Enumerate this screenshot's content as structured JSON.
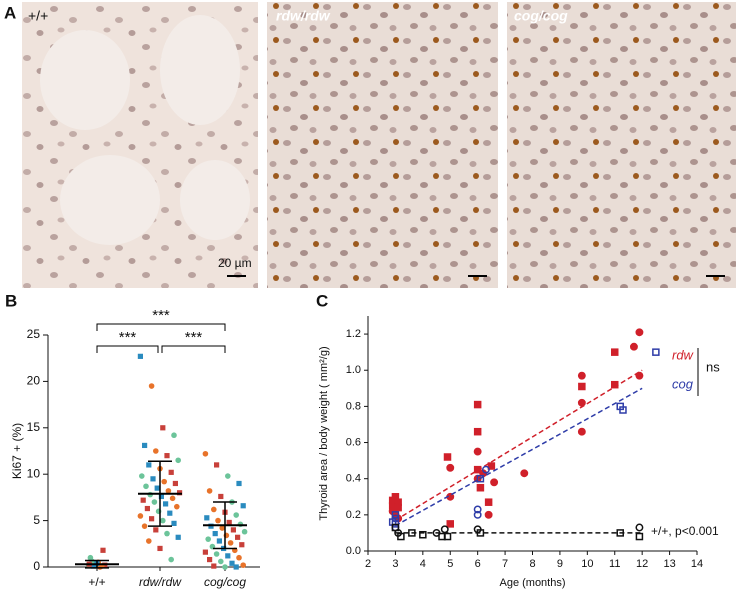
{
  "panel_a": {
    "label": "A",
    "images": [
      {
        "label": "+/+"
      },
      {
        "label": "rdw/rdw"
      },
      {
        "label": "cog/cog"
      }
    ],
    "scale_bar": "20 µm"
  },
  "chart_data": [
    {
      "type": "dotplot",
      "panel": "B",
      "y_label": "Ki67 + (%)",
      "categories": [
        "+/+",
        "rdw/rdw",
        "cog/cog"
      ],
      "ylim": [
        0,
        25
      ],
      "yticks": [
        0,
        5,
        10,
        15,
        20,
        25
      ],
      "palette": [
        "#6cc49a",
        "#2a8bbf",
        "#e8732a",
        "#c8403a"
      ],
      "groups": [
        [
          0.2,
          0.1,
          0.5,
          1.8,
          1.0,
          0.3,
          0,
          0.2,
          0.6,
          0.4,
          0.1,
          0.3
        ],
        [
          22.7,
          19.5,
          15.0,
          14.2,
          13.1,
          12.5,
          12.0,
          11.5,
          11.0,
          10.6,
          10.2,
          9.8,
          9.5,
          9.2,
          9.0,
          8.7,
          8.5,
          8.2,
          8.0,
          7.8,
          7.6,
          7.4,
          7.2,
          7.0,
          6.8,
          6.5,
          6.3,
          6.0,
          5.8,
          5.5,
          5.2,
          5.0,
          4.7,
          4.4,
          4.0,
          3.6,
          3.2,
          2.8,
          2.0,
          0.8
        ],
        [
          12.2,
          11.0,
          9.8,
          9.0,
          8.2,
          7.6,
          7.0,
          6.6,
          6.2,
          5.9,
          5.6,
          5.3,
          5.0,
          4.8,
          4.6,
          4.4,
          4.2,
          4.0,
          3.8,
          3.6,
          3.4,
          3.2,
          3.0,
          2.8,
          2.6,
          2.4,
          2.2,
          2.0,
          1.8,
          1.6,
          1.4,
          1.2,
          1.0,
          0.8,
          0.6,
          0.4,
          0.2,
          0.1,
          0,
          0
        ]
      ],
      "means": [
        0.3,
        7.9,
        4.5
      ],
      "sd": [
        0.4,
        3.5,
        2.5
      ],
      "significance": [
        "***",
        "***",
        "***"
      ]
    },
    {
      "type": "scatter",
      "panel": "C",
      "x_label": "Age (months)",
      "y_label": "Thyroid area / body weight ( mm²/g)",
      "xlim": [
        2,
        14
      ],
      "xticks": [
        2,
        3,
        4,
        5,
        6,
        7,
        8,
        9,
        10,
        11,
        12,
        13,
        14
      ],
      "ylim": [
        0,
        1.3
      ],
      "yticks": [
        {
          "value": 0,
          "label": "0.0"
        },
        0.2,
        0.4,
        0.6,
        0.8,
        {
          "value": 1,
          "label": "1.0"
        },
        1.2
      ],
      "series": [
        {
          "name": "rdw",
          "color": "#d0202a",
          "filled": true,
          "x": [
            2.9,
            2.9,
            2.9,
            3,
            3,
            3.1,
            3.1,
            3.1,
            4.9,
            5,
            5,
            5,
            6,
            6,
            6,
            6,
            6,
            6.1,
            6.2,
            6.4,
            6.4,
            6.5,
            6.6,
            7.7,
            9.8,
            9.8,
            9.8,
            9.8,
            11,
            11,
            11.7,
            11.9,
            11.9
          ],
          "values": [
            0.28,
            0.25,
            0.22,
            0.3,
            0.2,
            0.27,
            0.24,
            0.18,
            0.52,
            0.46,
            0.3,
            0.15,
            0.81,
            0.66,
            0.55,
            0.45,
            0.4,
            0.35,
            0.43,
            0.27,
            0.2,
            0.47,
            0.38,
            0.43,
            0.97,
            0.91,
            0.82,
            0.66,
            1.1,
            0.92,
            1.13,
            1.21,
            0.97
          ],
          "shapes": [
            "s",
            "s",
            "c",
            "s",
            "c",
            "s",
            "s",
            "c",
            "s",
            "c",
            "c",
            "s",
            "s",
            "s",
            "c",
            "s",
            "c",
            "s",
            "c",
            "s",
            "c",
            "s",
            "c",
            "c",
            "c",
            "s",
            "c",
            "c",
            "s",
            "s",
            "c",
            "c",
            "c"
          ],
          "fit": {
            "x": [
              3,
              12
            ],
            "y": [
              0.17,
              1.0
            ]
          }
        },
        {
          "name": "cog",
          "color": "#2e3ca8",
          "filled": false,
          "x": [
            3,
            3,
            3,
            3,
            2.9,
            6,
            6,
            6.1,
            6.3,
            11.2,
            11.3,
            12.5
          ],
          "values": [
            0.2,
            0.18,
            0.15,
            0.13,
            0.16,
            0.23,
            0.2,
            0.4,
            0.45,
            0.8,
            0.78,
            1.1
          ],
          "shapes": [
            "s",
            "c",
            "s",
            "c",
            "s",
            "c",
            "c",
            "s",
            "c",
            "s",
            "s",
            "s"
          ],
          "fit": {
            "x": [
              3,
              12
            ],
            "y": [
              0.14,
              0.9
            ]
          }
        },
        {
          "name": "+/+, p<0.001",
          "color": "#111111",
          "filled": false,
          "x": [
            3,
            3.1,
            3.2,
            3.6,
            4,
            4.5,
            4.7,
            4.8,
            4.9,
            6,
            6.1,
            11.2,
            11.9,
            11.9
          ],
          "values": [
            0.13,
            0.1,
            0.08,
            0.1,
            0.09,
            0.1,
            0.08,
            0.12,
            0.08,
            0.12,
            0.1,
            0.1,
            0.13,
            0.08
          ],
          "shapes": [
            "s",
            "c",
            "s",
            "s",
            "s",
            "c",
            "s",
            "c",
            "s",
            "c",
            "s",
            "s",
            "c",
            "s"
          ],
          "fit": {
            "x": [
              3,
              12
            ],
            "y": [
              0.1,
              0.1
            ]
          }
        }
      ],
      "annotation": "ns"
    }
  ]
}
